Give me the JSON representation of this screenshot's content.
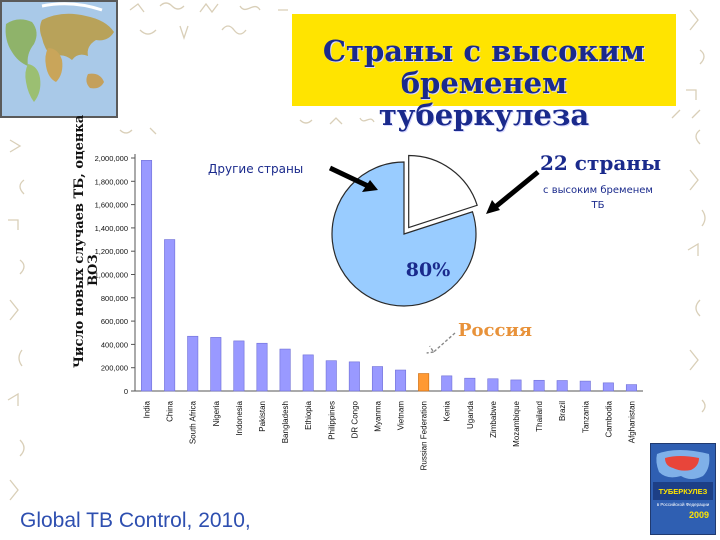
{
  "title": {
    "line1": "Страны с высоким",
    "line2": "бременем туберкулеза"
  },
  "source": "Global TB Control, 2010,",
  "chart_data": [
    {
      "type": "bar",
      "ylabel_lines": [
        "Число новых случаев ТБ, оценка",
        "ВОЗ"
      ],
      "ylim": [
        0,
        2000000
      ],
      "yticks": [
        0,
        200000,
        400000,
        600000,
        800000,
        1000000,
        1200000,
        1400000,
        1600000,
        1800000,
        2000000
      ],
      "ytick_labels": [
        "0",
        "200,000",
        "400,000",
        "600,000",
        "800,000",
        "1,000,000",
        "1,200,000",
        "1,400,000",
        "1,600,000",
        "1,800,000",
        "2,000,000"
      ],
      "categories": [
        "India",
        "China",
        "South Africa",
        "Nigeria",
        "Indonesia",
        "Pakistan",
        "Bangladesh",
        "Ethiopia",
        "Philippines",
        "DR Congo",
        "Myanma",
        "Vietnam",
        "Russian Federation",
        "Kenia",
        "Uganda",
        "Zimbabwe",
        "Mozambique",
        "Thailand",
        "Brazil",
        "Tanzania",
        "Cambodia",
        "Afghanistan"
      ],
      "values": [
        1980000,
        1300000,
        470000,
        460000,
        430000,
        410000,
        360000,
        310000,
        260000,
        250000,
        210000,
        180000,
        150000,
        130000,
        110000,
        105000,
        95000,
        92000,
        90000,
        85000,
        70000,
        55000
      ],
      "highlight_category": "Russian Federation",
      "bar_color": "#9999ff",
      "highlight_color": "#ff9933",
      "annotation": {
        "label": "Россия",
        "color": "#e8923a"
      }
    },
    {
      "type": "pie",
      "slices": [
        {
          "label_lines": [
            "22 страны",
            "с высоким бременем",
            "ТБ"
          ],
          "value": 80,
          "color": "#99ccff",
          "data_label": "80%"
        },
        {
          "label_lines": [
            "Другие страны"
          ],
          "value": 20,
          "color": "#ffffff"
        }
      ],
      "label_color": "#1a2a8c"
    }
  ],
  "colors": {
    "title_bg": "#ffe400",
    "title_text": "#1a2a8c",
    "source_text": "#2e4fb0",
    "accent_orange": "#e8923a"
  },
  "icons": {
    "map": "world-map-image",
    "book": "tb-report-book-cover"
  },
  "book_cover": {
    "title": "ТУБЕРКУЛЕЗ",
    "subtitle": "в Российской Федерации",
    "year": "2009"
  }
}
